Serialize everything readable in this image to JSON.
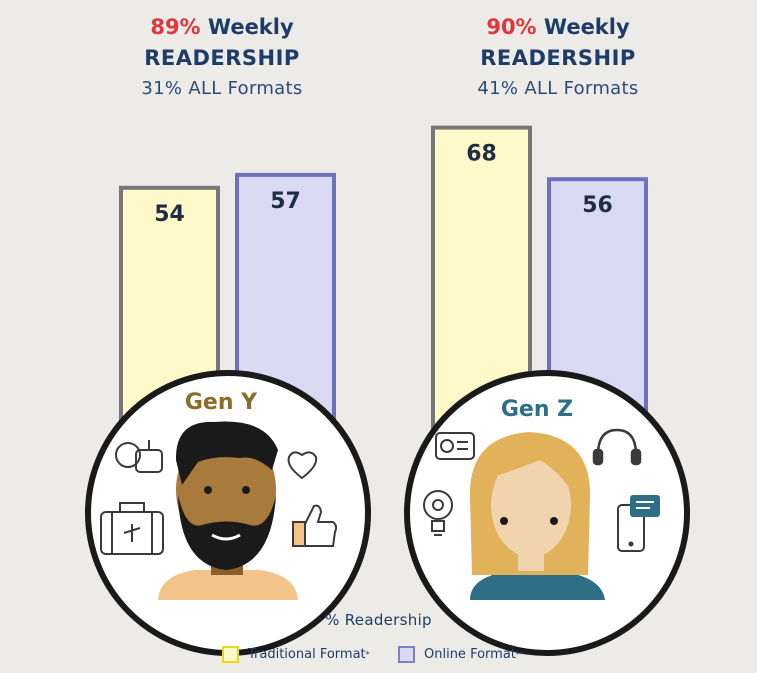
{
  "groups": [
    {
      "weekly_pct": "89%",
      "weekly_word": "Weekly",
      "readership_label": "READERSHIP",
      "all_formats": "31% ALL Formats",
      "gen_label": "Gen Y"
    },
    {
      "weekly_pct": "90%",
      "weekly_word": "Weekly",
      "readership_label": "READERSHIP",
      "all_formats": "41% ALL Formats",
      "gen_label": "Gen Z"
    }
  ],
  "legend": {
    "title": "% Readership",
    "traditional": "Traditional Format",
    "traditional_mark": "*",
    "online": "Online Format",
    "online_mark": "**"
  },
  "colors": {
    "traditional_fill": "#fff9c9",
    "online_fill": "#d9d9f2",
    "headline_red": "#e0353a",
    "headline_navy": "#1e3c68",
    "gen_y_label": "#8a6d2a",
    "gen_z_label": "#2f6f86"
  },
  "chart_data": {
    "type": "bar",
    "categories": [
      "Gen Y",
      "Gen Z"
    ],
    "series": [
      {
        "name": "Traditional Format",
        "values": [
          54,
          68
        ]
      },
      {
        "name": "Online Format",
        "values": [
          57,
          56
        ]
      }
    ],
    "ylim": [
      0,
      100
    ],
    "grid": false,
    "legend_position": "bottom"
  }
}
